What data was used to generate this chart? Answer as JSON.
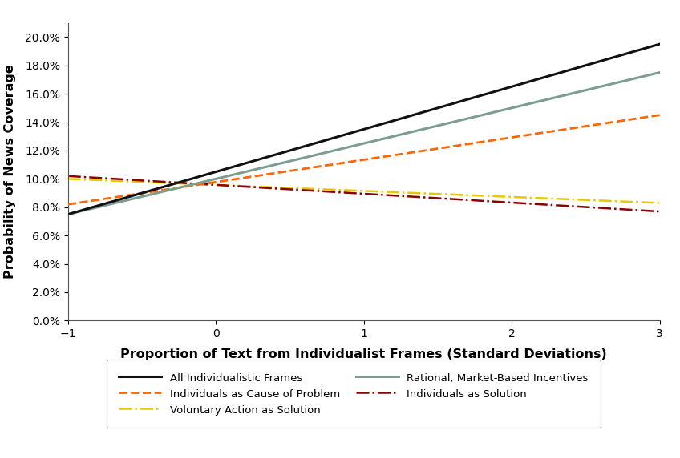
{
  "title": "",
  "xlabel": "Proportion of Text from Individualist Frames (Standard Deviations)",
  "ylabel": "Probability of News Coverage",
  "xlim": [
    -1,
    3
  ],
  "ylim": [
    0.0,
    0.21
  ],
  "yticks": [
    0.0,
    0.02,
    0.04,
    0.06,
    0.08,
    0.1,
    0.12,
    0.14,
    0.16,
    0.18,
    0.2
  ],
  "xticks": [
    -1,
    0,
    1,
    2,
    3
  ],
  "lines": [
    {
      "label": "All Individualistic Frames",
      "x": [
        -1,
        3
      ],
      "y": [
        0.075,
        0.195
      ],
      "color": "#111111",
      "linestyle": "solid",
      "linewidth": 2.2,
      "zorder": 5
    },
    {
      "label": "Rational, Market-Based Incentives",
      "x": [
        -1,
        3
      ],
      "y": [
        0.075,
        0.175
      ],
      "color": "#7d9e8e",
      "linestyle": "solid",
      "linewidth": 2.2,
      "zorder": 4
    },
    {
      "label": "Individuals as Cause of Problem",
      "x": [
        -1,
        3
      ],
      "y": [
        0.082,
        0.145
      ],
      "color": "#ff6600",
      "linestyle": "dashed",
      "linewidth": 2.0,
      "zorder": 3
    },
    {
      "label": "Individuals as Solution",
      "x": [
        -1,
        3
      ],
      "y": [
        0.102,
        0.077
      ],
      "color": "#8b0000",
      "linestyle": "dashdot",
      "linewidth": 1.8,
      "zorder": 2
    },
    {
      "label": "Voluntary Action as Solution",
      "x": [
        -1,
        3
      ],
      "y": [
        0.1,
        0.083
      ],
      "color": "#e8c800",
      "linestyle": "dashdot",
      "linewidth": 1.8,
      "zorder": 1
    }
  ],
  "background_color": "#ffffff",
  "legend_fontsize": 9.5,
  "axis_fontsize": 11.5,
  "tick_fontsize": 10,
  "legend_order": [
    0,
    2,
    4,
    1,
    3
  ]
}
